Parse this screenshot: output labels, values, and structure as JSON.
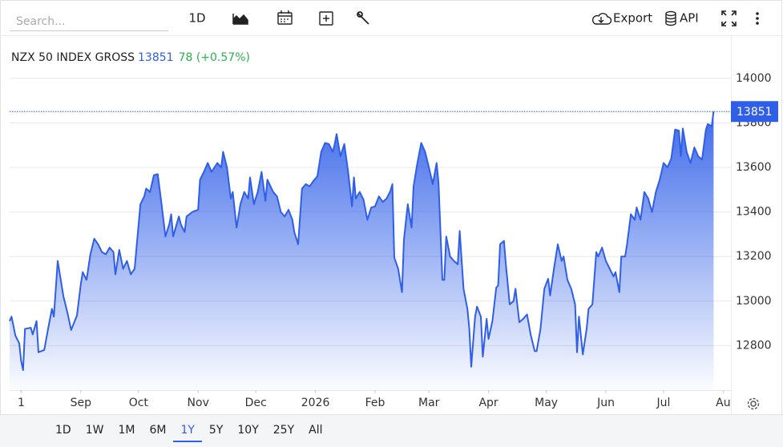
{
  "toolbar": {
    "search_placeholder": "Search...",
    "interval": "1D",
    "export": "Export",
    "api": "API"
  },
  "chart_data": {
    "type": "area",
    "title": "NZX 50 INDEX GROSS",
    "last_value": 13851,
    "change_label": "78 (+0.57%)",
    "color": "#2f5ee8",
    "x": [
      -6,
      -5,
      -3,
      -1,
      0,
      1,
      2,
      5,
      6,
      8,
      9,
      12,
      14,
      16,
      17,
      19,
      22,
      24,
      26,
      29,
      31,
      32,
      34,
      36,
      38,
      40,
      42,
      44,
      46,
      48,
      49,
      51,
      53,
      55,
      57,
      59,
      62,
      64,
      65,
      67,
      69,
      71,
      73,
      75,
      77,
      78,
      79,
      82,
      83,
      85,
      86,
      89,
      92,
      93,
      95,
      97,
      99,
      102,
      104,
      105,
      107,
      109,
      110,
      112,
      114,
      116,
      118,
      119,
      121,
      123,
      125,
      127,
      128,
      131,
      133,
      135,
      137,
      139,
      141,
      142,
      144,
      146,
      148,
      150,
      152,
      154,
      156,
      158,
      160,
      162,
      163,
      164,
      166,
      168,
      170,
      172,
      173,
      174,
      176,
      178,
      180,
      182,
      184,
      186,
      188,
      190,
      192,
      193,
      194,
      196,
      198,
      199,
      201,
      203,
      204,
      206,
      208,
      210,
      212,
      214,
      216,
      217,
      219,
      220,
      221,
      223,
      225,
      227,
      228,
      230,
      232,
      233,
      234,
      236,
      237,
      239,
      240,
      242,
      243,
      245,
      247,
      248,
      249,
      251,
      252,
      254,
      256,
      257,
      259,
      261,
      263,
      265,
      267,
      268,
      270,
      272,
      274,
      275,
      277,
      279,
      281,
      282,
      284,
      286,
      288,
      289,
      290,
      292,
      294,
      295,
      297,
      299,
      300,
      302,
      304,
      306,
      308,
      309,
      311,
      312,
      314,
      315,
      317,
      319,
      320,
      322,
      324,
      326,
      328,
      330,
      332,
      334,
      336,
      338,
      340,
      342,
      343,
      344,
      346,
      348,
      350,
      352,
      354,
      356,
      357,
      359,
      360
    ],
    "values": [
      12910,
      12930,
      12845,
      12810,
      12730,
      12690,
      12875,
      12880,
      12850,
      12910,
      12770,
      12780,
      12875,
      12965,
      12930,
      13180,
      13020,
      12950,
      12870,
      12935,
      13075,
      13130,
      13095,
      13210,
      13280,
      13255,
      13220,
      13210,
      13240,
      13220,
      13120,
      13230,
      13145,
      13180,
      13120,
      13145,
      13435,
      13470,
      13505,
      13490,
      13565,
      13570,
      13435,
      13290,
      13345,
      13390,
      13290,
      13380,
      13345,
      13310,
      13380,
      13400,
      13410,
      13545,
      13580,
      13620,
      13580,
      13620,
      13600,
      13670,
      13600,
      13460,
      13490,
      13330,
      13435,
      13490,
      13460,
      13555,
      13435,
      13490,
      13580,
      13450,
      13545,
      13490,
      13470,
      13400,
      13380,
      13410,
      13365,
      13310,
      13255,
      13505,
      13525,
      13515,
      13540,
      13560,
      13670,
      13710,
      13705,
      13670,
      13705,
      13750,
      13650,
      13705,
      13580,
      13425,
      13555,
      13460,
      13490,
      13455,
      13365,
      13420,
      13425,
      13470,
      13445,
      13460,
      13495,
      13525,
      13195,
      13145,
      13040,
      13275,
      13435,
      13330,
      13515,
      13620,
      13710,
      13670,
      13600,
      13525,
      13620,
      13530,
      13095,
      13095,
      13290,
      13200,
      13180,
      13165,
      13315,
      13055,
      12965,
      12875,
      12705,
      12930,
      12975,
      12930,
      12750,
      12920,
      12830,
      12910,
      13060,
      13070,
      13255,
      13270,
      13165,
      12985,
      13000,
      13055,
      12905,
      12920,
      12940,
      12845,
      12775,
      12775,
      12875,
      13055,
      13100,
      13025,
      13145,
      13255,
      13180,
      13200,
      13095,
      13055,
      12985,
      12770,
      12930,
      12760,
      12875,
      12965,
      12985,
      13220,
      13200,
      13240,
      13180,
      13145,
      13110,
      13130,
      13040,
      13200,
      13200,
      13255,
      13390,
      13365,
      13420,
      13365,
      13490,
      13460,
      13400,
      13490,
      13545,
      13620,
      13600,
      13640,
      13770,
      13765,
      13650,
      13775,
      13670,
      13620,
      13690,
      13650,
      13635,
      13770,
      13795,
      13785,
      13851
    ],
    "xlim": [
      -6,
      369
    ],
    "xticks": [
      {
        "value": 0,
        "label": "1"
      },
      {
        "value": 31,
        "label": "Sep"
      },
      {
        "value": 61,
        "label": "Oct"
      },
      {
        "value": 92,
        "label": "Nov"
      },
      {
        "value": 122,
        "label": "Dec"
      },
      {
        "value": 153,
        "label": "2026"
      },
      {
        "value": 184,
        "label": "Feb"
      },
      {
        "value": 212,
        "label": "Mar"
      },
      {
        "value": 243,
        "label": "Apr"
      },
      {
        "value": 273,
        "label": "May"
      },
      {
        "value": 304,
        "label": "Jun"
      },
      {
        "value": 334,
        "label": "Jul"
      },
      {
        "value": 365,
        "label": "Au"
      }
    ],
    "ylim": [
      12600,
      14190
    ],
    "yticks": [
      12800,
      13000,
      13200,
      13400,
      13600,
      13800,
      14000
    ],
    "grid": true
  },
  "range_buttons": {
    "items": [
      "1D",
      "1W",
      "1M",
      "6M",
      "1Y",
      "5Y",
      "10Y",
      "25Y",
      "All"
    ],
    "selected": 4
  }
}
